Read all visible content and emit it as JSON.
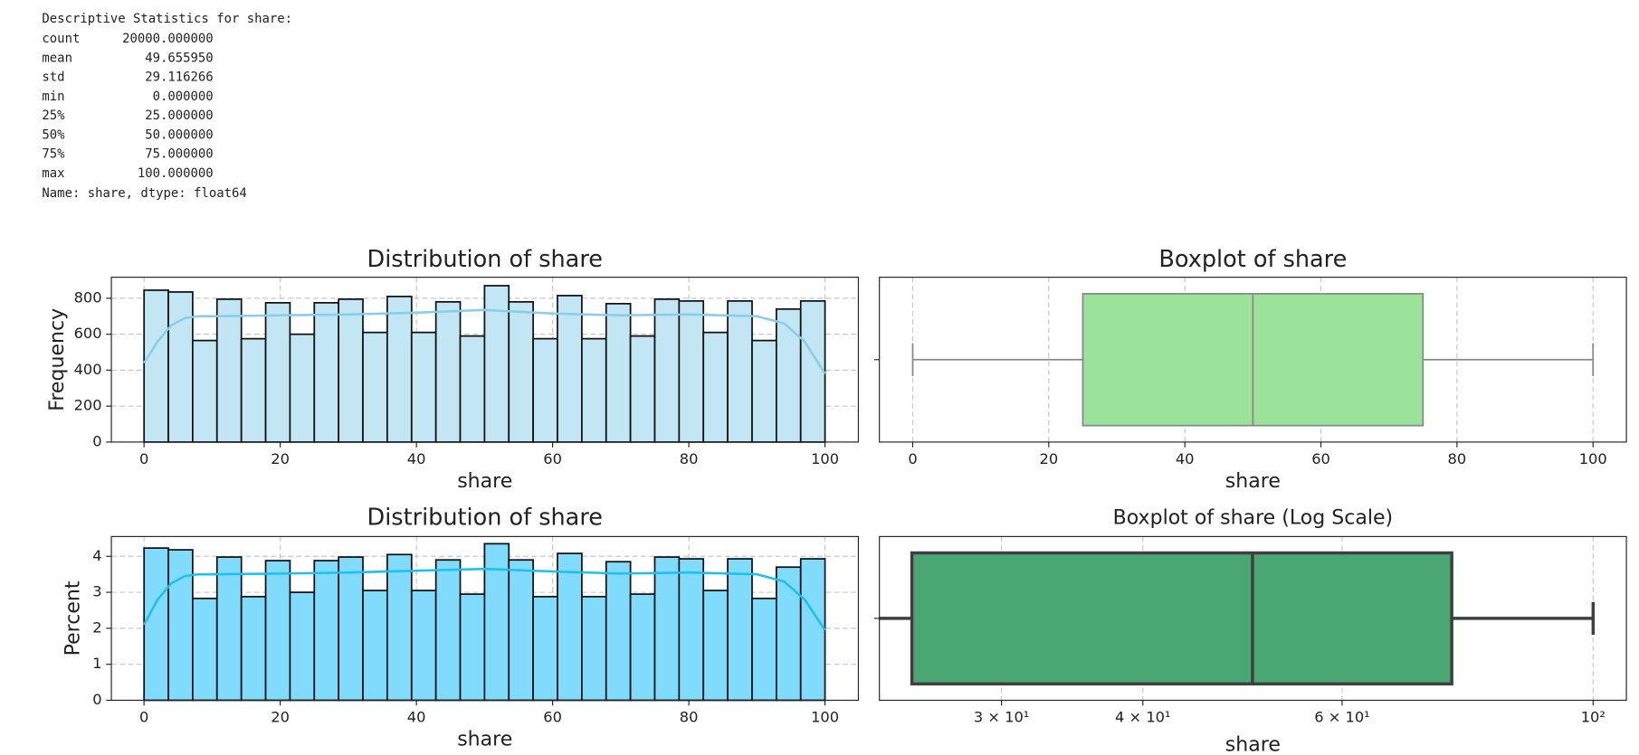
{
  "stats": {
    "title": "Descriptive Statistics for share:",
    "rows": [
      [
        "count",
        "20000.000000"
      ],
      [
        "mean",
        "49.655950"
      ],
      [
        "std",
        "29.116266"
      ],
      [
        "min",
        "0.000000"
      ],
      [
        "25%",
        "25.000000"
      ],
      [
        "50%",
        "50.000000"
      ],
      [
        "75%",
        "75.000000"
      ],
      [
        "max",
        "100.000000"
      ]
    ],
    "footer": "Name: share, dtype: float64"
  },
  "chart_data": [
    {
      "type": "histogram",
      "title": "Distribution of share",
      "xlabel": "share",
      "ylabel": "Frequency",
      "bins": [
        0,
        3.57,
        7.14,
        10.71,
        14.29,
        17.86,
        21.43,
        25,
        28.57,
        32.14,
        35.71,
        39.29,
        42.86,
        46.43,
        50,
        53.57,
        57.14,
        60.71,
        64.29,
        67.86,
        71.43,
        75,
        78.57,
        82.14,
        85.71,
        89.29,
        92.86,
        96.43,
        100
      ],
      "values": [
        845,
        835,
        565,
        795,
        575,
        775,
        600,
        775,
        795,
        610,
        810,
        610,
        780,
        590,
        870,
        780,
        575,
        815,
        575,
        770,
        590,
        795,
        785,
        610,
        785,
        565,
        740,
        785
      ],
      "color": "#c3e6f5",
      "edgecolor": "#111111",
      "kde": {
        "x": [
          0,
          2,
          4,
          6,
          8,
          10,
          20,
          30,
          40,
          50,
          60,
          70,
          80,
          90,
          94,
          97,
          100
        ],
        "values": [
          440,
          560,
          650,
          690,
          700,
          700,
          705,
          710,
          720,
          735,
          715,
          705,
          710,
          700,
          660,
          560,
          380
        ],
        "color": "#87ceeb"
      },
      "xlim": [
        -4.8,
        104.9
      ],
      "ylim": [
        0,
        917
      ],
      "xticks": [
        0,
        20,
        40,
        60,
        80,
        100
      ],
      "yticks": [
        0,
        200,
        400,
        600,
        800
      ],
      "grid": true
    },
    {
      "type": "boxplot",
      "title": "Boxplot of share",
      "xlabel": "share",
      "min": 0,
      "q1": 25,
      "median": 50,
      "q3": 75,
      "max": 100,
      "color": "#9be39b",
      "line_color": "#888888",
      "log": false,
      "xlim": [
        -4.9,
        104.9
      ],
      "xticks": [
        0,
        20,
        40,
        60,
        80,
        100
      ],
      "grid": true
    },
    {
      "type": "histogram",
      "title": "Distribution of share",
      "xlabel": "share",
      "ylabel": "Percent",
      "bins": [
        0,
        3.57,
        7.14,
        10.71,
        14.29,
        17.86,
        21.43,
        25,
        28.57,
        32.14,
        35.71,
        39.29,
        42.86,
        46.43,
        50,
        53.57,
        57.14,
        60.71,
        64.29,
        67.86,
        71.43,
        75,
        78.57,
        82.14,
        85.71,
        89.29,
        92.86,
        96.43,
        100
      ],
      "values": [
        4.23,
        4.18,
        2.83,
        3.98,
        2.88,
        3.88,
        3.0,
        3.88,
        3.98,
        3.05,
        4.05,
        3.05,
        3.9,
        2.95,
        4.35,
        3.9,
        2.88,
        4.08,
        2.88,
        3.85,
        2.95,
        3.98,
        3.93,
        3.05,
        3.93,
        2.83,
        3.7,
        3.93
      ],
      "color": "#80dbfc",
      "edgecolor": "#111111",
      "kde": {
        "x": [
          0,
          2,
          4,
          6,
          8,
          10,
          20,
          30,
          40,
          50,
          60,
          70,
          80,
          90,
          94,
          97,
          100
        ],
        "values": [
          2.1,
          2.8,
          3.25,
          3.45,
          3.5,
          3.5,
          3.52,
          3.55,
          3.6,
          3.65,
          3.58,
          3.52,
          3.55,
          3.5,
          3.3,
          2.8,
          1.95
        ],
        "color": "#1ec0f0"
      },
      "xlim": [
        -4.8,
        104.9
      ],
      "ylim": [
        0,
        4.55
      ],
      "xticks": [
        0,
        20,
        40,
        60,
        80,
        100
      ],
      "yticks": [
        0,
        1,
        2,
        3,
        4
      ],
      "grid": true
    },
    {
      "type": "boxplot",
      "title": "Boxplot of share (Log Scale)",
      "xlabel": "share",
      "min": 0,
      "q1": 25,
      "median": 50,
      "q3": 75,
      "max": 100,
      "color": "#4aa673",
      "line_color": "#3f3f3f",
      "log": true,
      "xlim": [
        23.4,
        107
      ],
      "xticks": [
        {
          "value": 30,
          "label": "3 × 10¹"
        },
        {
          "value": 40,
          "label": "4 × 10¹"
        },
        {
          "value": 60,
          "label": "6 × 10¹"
        },
        {
          "value": 100,
          "label": "10²"
        }
      ],
      "grid": true
    }
  ]
}
